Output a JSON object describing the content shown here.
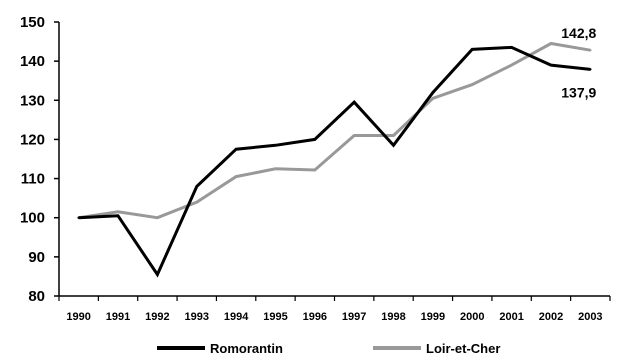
{
  "chart_data": {
    "type": "line",
    "x": [
      "1990",
      "1991",
      "1992",
      "1993",
      "1994",
      "1995",
      "1996",
      "1997",
      "1998",
      "1999",
      "2000",
      "2001",
      "2002",
      "2003"
    ],
    "series": [
      {
        "name": "Romorantin",
        "color": "#000000",
        "values": [
          100,
          100.5,
          85.5,
          108,
          117.5,
          118.5,
          120,
          129.5,
          118.5,
          132,
          143,
          143.5,
          139,
          137.9
        ]
      },
      {
        "name": "Loir-et-Cher",
        "color": "#999999",
        "values": [
          100,
          101.5,
          100,
          104,
          110.5,
          112.5,
          112.2,
          121,
          121,
          130.5,
          134,
          139,
          144.5,
          142.8
        ]
      }
    ],
    "yticks": [
      80,
      90,
      100,
      110,
      120,
      130,
      140,
      150
    ],
    "ylim": [
      80,
      150
    ],
    "annotations": [
      {
        "text": "142,8",
        "series": "Loir-et-Cher",
        "x": "2003"
      },
      {
        "text": "137,9",
        "series": "Romorantin",
        "x": "2003"
      }
    ],
    "grid": false,
    "legend_position": "bottom"
  }
}
